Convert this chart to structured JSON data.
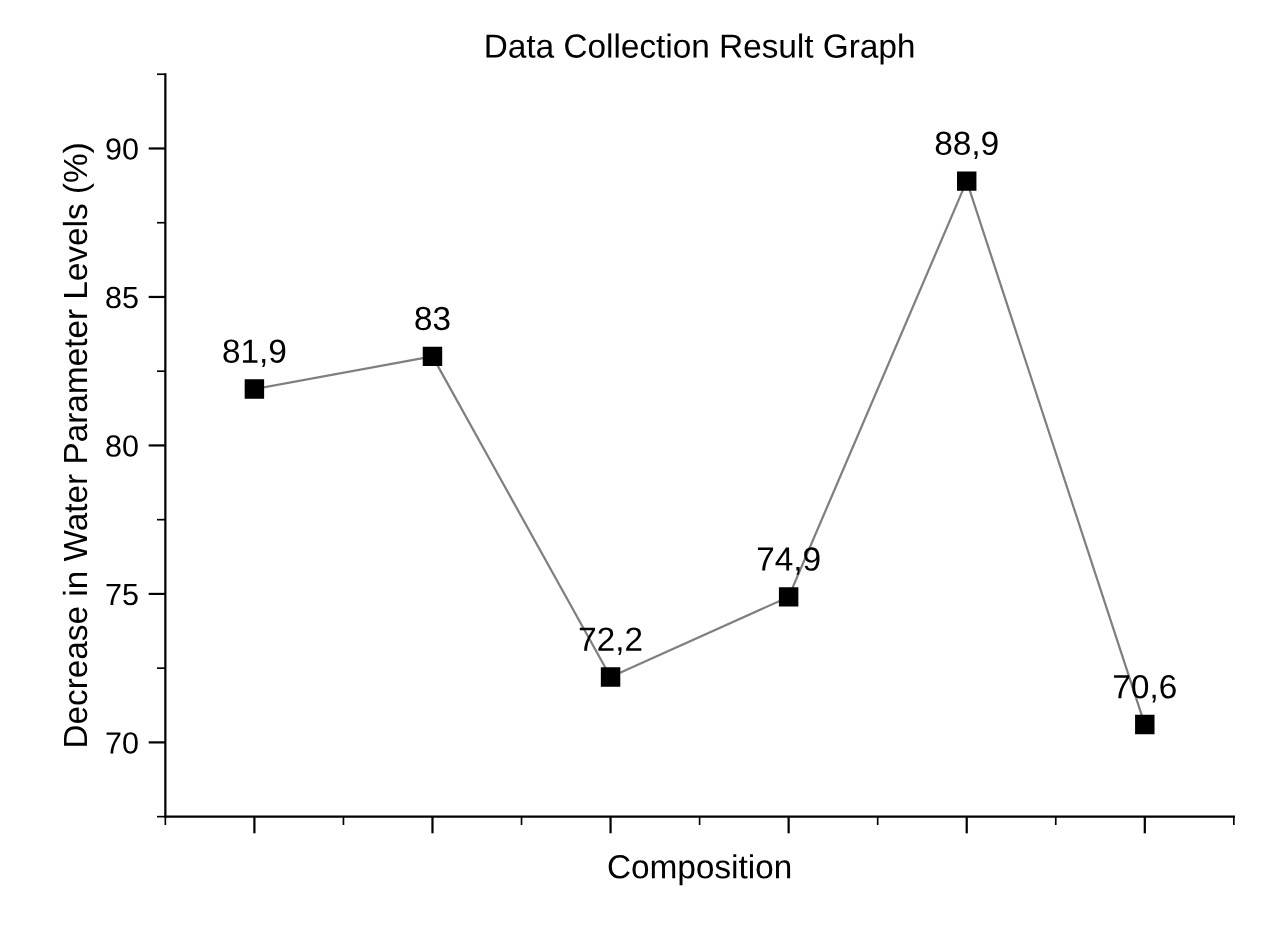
{
  "chart_data": {
    "type": "line",
    "title": "Data Collection Result Graph",
    "xlabel": "Composition",
    "ylabel": "Decrease in Water Parameter Levels (%)",
    "categories": [
      null,
      null,
      null,
      null,
      null,
      null
    ],
    "series": [
      {
        "color": "#000000",
        "values": [
          81.9,
          83,
          72.2,
          74.9,
          88.9,
          70.6
        ],
        "value_labels": [
          "81,9",
          "83",
          "72,2",
          "74,9",
          "88,9",
          "70,6"
        ]
      }
    ],
    "ylim": [
      67.5,
      92.5
    ],
    "yticks": [
      70,
      75,
      80,
      85,
      90
    ],
    "marker": "square",
    "line_style": "solid"
  }
}
